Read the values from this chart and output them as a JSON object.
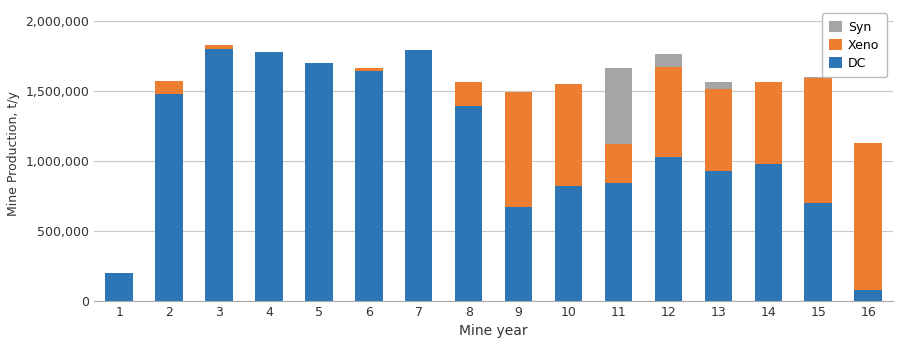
{
  "mine_years": [
    1,
    2,
    3,
    4,
    5,
    6,
    7,
    8,
    9,
    10,
    11,
    12,
    13,
    14,
    15,
    16
  ],
  "DC": [
    200000,
    1480000,
    1800000,
    1780000,
    1700000,
    1640000,
    1790000,
    1390000,
    670000,
    820000,
    840000,
    1030000,
    930000,
    980000,
    700000,
    75000
  ],
  "Xeno": [
    0,
    90000,
    30000,
    0,
    0,
    20000,
    0,
    170000,
    820000,
    730000,
    280000,
    640000,
    580000,
    580000,
    890000,
    1050000
  ],
  "Syn": [
    0,
    0,
    0,
    0,
    0,
    0,
    0,
    0,
    0,
    0,
    540000,
    90000,
    50000,
    0,
    10000,
    0
  ],
  "colors": {
    "DC": "#2e75b6",
    "Xeno": "#ed7d31",
    "Syn": "#a5a5a5"
  },
  "ylabel": "Mine Production, t/y",
  "xlabel": "Mine year",
  "ylim": [
    0,
    2100000
  ],
  "yticks": [
    0,
    500000,
    1000000,
    1500000,
    2000000
  ],
  "bar_width": 0.55,
  "figsize": [
    9.0,
    3.45
  ],
  "dpi": 100,
  "background_color": "#ffffff",
  "grid_color": "#c8c8c8"
}
